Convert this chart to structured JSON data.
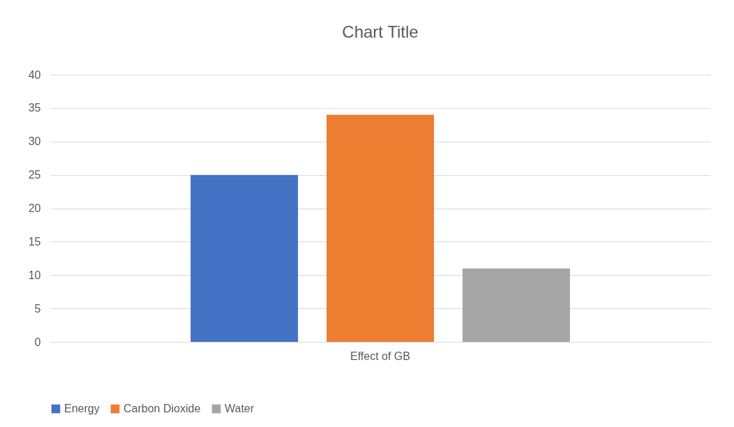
{
  "chart_data": {
    "type": "bar",
    "title": "Chart Title",
    "categories": [
      "Effect of GB"
    ],
    "series": [
      {
        "name": "Energy",
        "color": "#4472c4",
        "values": [
          25
        ]
      },
      {
        "name": "Carbon Dioxide",
        "color": "#ed7d31",
        "values": [
          34
        ]
      },
      {
        "name": "Water",
        "color": "#a5a5a5",
        "values": [
          11
        ]
      }
    ],
    "ylim": [
      0,
      40
    ],
    "yticks": [
      0,
      5,
      10,
      15,
      20,
      25,
      30,
      35,
      40
    ],
    "grid": "y",
    "legend": "bottom"
  }
}
